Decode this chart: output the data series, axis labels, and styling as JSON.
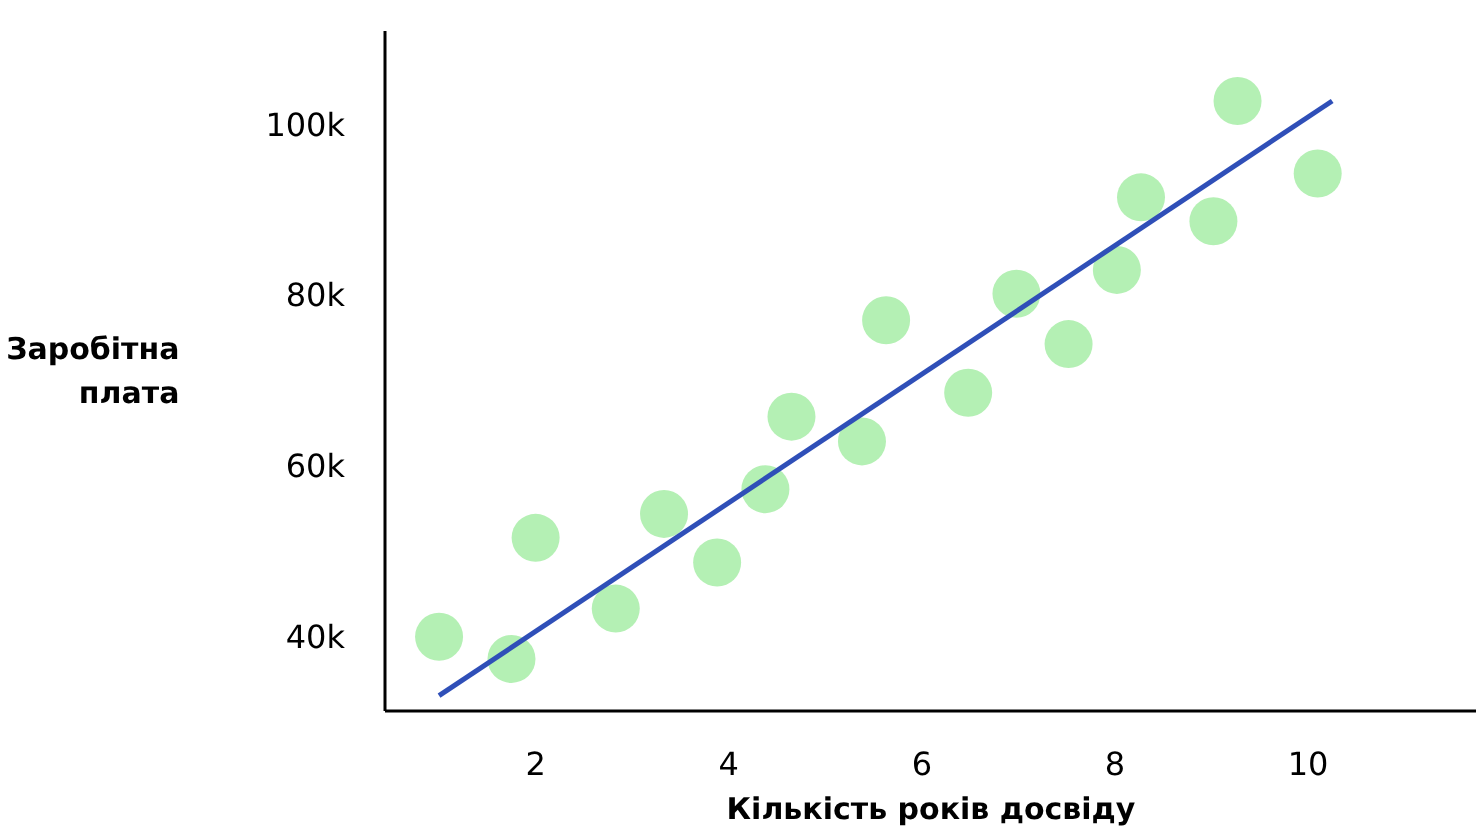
{
  "chart_data": {
    "type": "scatter",
    "xlabel": "Кількість років досвіду",
    "ylabel": "Заробітна плата",
    "xlim": [
      0.44,
      11.75
    ],
    "ylim": [
      31.3,
      111
    ],
    "xticks": [
      2,
      4,
      6,
      8,
      10
    ],
    "yticks": [
      {
        "value": 40,
        "label": "40k"
      },
      {
        "value": 60,
        "label": "60k"
      },
      {
        "value": 80,
        "label": "80k"
      },
      {
        "value": 100,
        "label": "100k"
      }
    ],
    "grid": false,
    "series": [
      {
        "marker": "circle",
        "color": "#b4f0b4",
        "x": [
          1.0,
          1.75,
          2.0,
          2.83,
          3.33,
          3.88,
          4.38,
          4.65,
          5.38,
          5.63,
          6.48,
          6.98,
          7.52,
          8.02,
          8.27,
          9.02,
          9.27,
          10.1
        ],
        "values": [
          40.0,
          37.4,
          51.6,
          43.3,
          54.4,
          48.7,
          57.3,
          65.8,
          62.9,
          77.1,
          68.6,
          80.2,
          74.3,
          83.0,
          91.5,
          88.7,
          102.8,
          94.3
        ]
      },
      {
        "type": "line",
        "color": "#2f4fb8",
        "x": [
          1.0,
          10.25
        ],
        "values": [
          33.1,
          102.8
        ]
      }
    ]
  }
}
